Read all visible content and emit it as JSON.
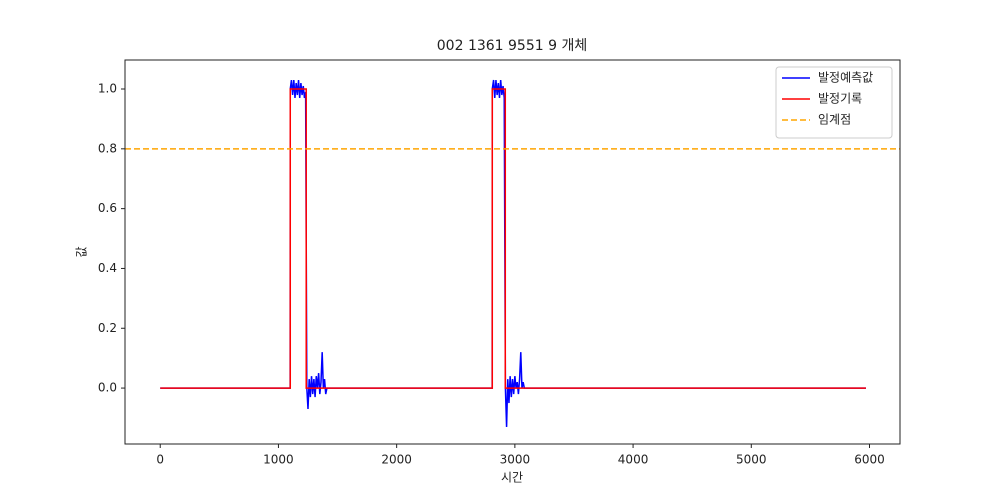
{
  "chart_data": {
    "type": "line",
    "title": "002 1361 9551 9 개체",
    "x_label": "시간",
    "y_label": "값",
    "series": [
      {
        "name": "발정예측값",
        "color": "#0000ff",
        "x": [
          0,
          1099,
          1100,
          1110,
          1120,
          1130,
          1140,
          1150,
          1160,
          1170,
          1180,
          1190,
          1200,
          1210,
          1220,
          1230,
          1240,
          1250,
          1260,
          1270,
          1280,
          1290,
          1300,
          1310,
          1320,
          1330,
          1340,
          1350,
          1360,
          1370,
          1380,
          1390,
          1400,
          1410,
          2808,
          2809,
          2820,
          2830,
          2840,
          2850,
          2860,
          2870,
          2880,
          2890,
          2900,
          2910,
          2920,
          2930,
          2940,
          2950,
          2960,
          2970,
          2980,
          2990,
          3000,
          3010,
          3020,
          3030,
          3040,
          3050,
          3060,
          3070,
          3080,
          5970
        ],
        "values": [
          0,
          0,
          1.0,
          1.03,
          0.98,
          1.03,
          0.97,
          1.02,
          0.98,
          1.03,
          0.97,
          1.02,
          0.98,
          1.01,
          0.97,
          0.99,
          0.0,
          -0.07,
          0.03,
          -0.03,
          0.04,
          -0.02,
          0.03,
          -0.03,
          0.04,
          0.0,
          0.05,
          -0.02,
          0.02,
          0.12,
          0.0,
          0.03,
          -0.02,
          0,
          0,
          1.0,
          1.03,
          0.97,
          1.03,
          0.98,
          1.02,
          0.97,
          1.03,
          0.98,
          1.01,
          0.97,
          0.0,
          -0.13,
          0.03,
          -0.05,
          0.04,
          -0.03,
          0.03,
          -0.02,
          0.04,
          0.0,
          0.02,
          -0.02,
          0.03,
          0.12,
          0.0,
          0.02,
          0,
          0
        ]
      },
      {
        "name": "발정기록",
        "color": "#ff0000",
        "x": [
          0,
          1100,
          1100,
          1235,
          1235,
          2809,
          2809,
          2919,
          2919,
          5970
        ],
        "values": [
          0,
          0,
          1,
          1,
          0,
          0,
          1,
          1,
          0,
          0
        ]
      }
    ],
    "threshold": {
      "name": "임계점",
      "value": 0.8,
      "color": "#ffa500"
    },
    "xlim": [
      -298,
      6258
    ],
    "ylim": [
      -0.187,
      1.097
    ],
    "xticks": [
      0,
      1000,
      2000,
      3000,
      4000,
      5000,
      6000
    ],
    "yticks": [
      {
        "value": 0,
        "label": "0.0"
      },
      0.2,
      0.4,
      0.6,
      0.8,
      {
        "value": 1,
        "label": "1.0"
      }
    ],
    "legend": "upper right"
  }
}
